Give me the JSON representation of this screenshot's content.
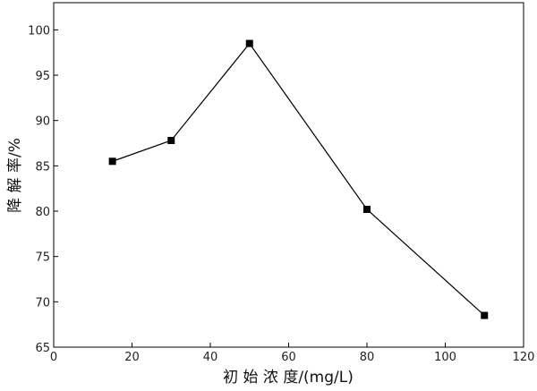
{
  "chart_data": {
    "type": "line",
    "xlabel": "初 始 浓 度/(mg/L)",
    "ylabel": "降 解 率/%",
    "xlim": [
      0,
      120
    ],
    "ylim": [
      65,
      103
    ],
    "xticks": [
      0,
      20,
      40,
      60,
      80,
      100,
      120
    ],
    "yticks": [
      65,
      70,
      75,
      80,
      85,
      90,
      95,
      100
    ],
    "grid": false,
    "series": [
      {
        "x": [
          15,
          30,
          50,
          80,
          110
        ],
        "y": [
          85.5,
          87.8,
          98.5,
          80.2,
          68.5
        ],
        "color": "#000000",
        "marker": "square"
      }
    ]
  }
}
